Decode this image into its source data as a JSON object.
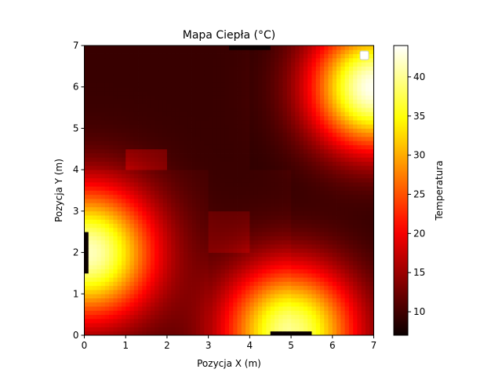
{
  "chart_data": {
    "type": "heatmap",
    "title": "Mapa Ciepła (°C)",
    "xlabel": "Pozycja X (m)",
    "ylabel": "Pozycja Y (m)",
    "xlim": [
      0,
      7
    ],
    "ylim": [
      0,
      7
    ],
    "x_ticks": [
      "0",
      "1",
      "2",
      "3",
      "4",
      "5",
      "6",
      "7"
    ],
    "y_ticks": [
      "0",
      "1",
      "2",
      "3",
      "4",
      "5",
      "6",
      "7"
    ],
    "grid": false,
    "colormap": "hot",
    "colorbar": {
      "label": "Temperatura",
      "range": [
        7,
        44
      ],
      "ticks": [
        "10",
        "15",
        "20",
        "25",
        "30",
        "35",
        "40"
      ],
      "tick_values": [
        10,
        15,
        20,
        25,
        30,
        35,
        40
      ]
    },
    "base_temperature": 9.5,
    "legend": {
      "placement": "upper right",
      "entries": []
    },
    "heat_sources": [
      {
        "x": 7.0,
        "y": 6.0,
        "peak": 44,
        "radius": 1.9
      },
      {
        "x": 0.1,
        "y": 2.0,
        "peak": 41,
        "radius": 2.0
      },
      {
        "x": 5.0,
        "y": 0.1,
        "peak": 40,
        "radius": 2.0
      }
    ],
    "rooms": [
      {
        "x": [
          0,
          3
        ],
        "y": [
          0,
          4
        ],
        "offset": 0.5
      },
      {
        "x": 1,
        "y": [
          4,
          4.5
        ],
        "x2": 2,
        "offset": 3.0
      },
      {
        "x": [
          3,
          4
        ],
        "y": [
          2,
          3
        ],
        "offset": 2.0
      },
      {
        "x": [
          4,
          7
        ],
        "y": [
          4,
          7
        ],
        "offset": -0.5
      },
      {
        "x": [
          5,
          7
        ],
        "y": [
          0,
          4
        ],
        "offset": -0.5
      }
    ],
    "cold_sources": [
      {
        "x": [
          3.5,
          4.5
        ],
        "y": [
          6.9,
          7.0
        ],
        "value": 7
      },
      {
        "x": [
          4.5,
          5.5
        ],
        "y": [
          0.0,
          0.1
        ],
        "value": 7
      },
      {
        "x": [
          0.0,
          0.1
        ],
        "y": [
          1.5,
          2.5
        ],
        "value": 7
      }
    ],
    "colors": {
      "cmap_stops": [
        "#0b0000",
        "#ff0000",
        "#ffff00",
        "#ffffff"
      ]
    }
  }
}
